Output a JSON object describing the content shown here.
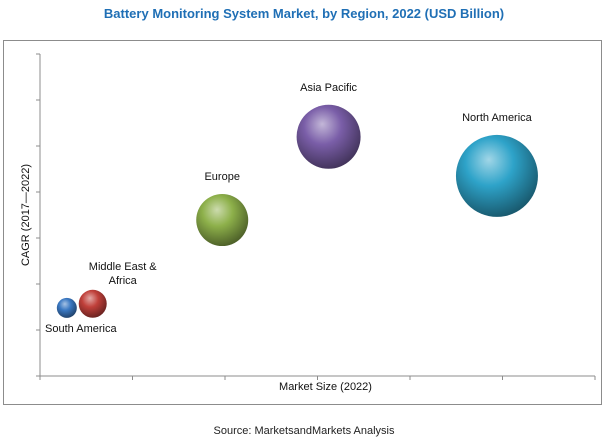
{
  "title": "Battery Monitoring System Market, by Region, 2022 (USD Billion)",
  "source": "Source: MarketsandMarkets Analysis",
  "chart_data": {
    "type": "bubble",
    "title": "Battery Monitoring System Market, by Region, 2022 (USD Billion)",
    "xlabel": "Market Size (2022)",
    "ylabel": "CAGR (2017—2022)",
    "xlim": [
      0,
      6
    ],
    "ylim": [
      0,
      7
    ],
    "x_ticks": 6,
    "y_ticks": 7,
    "tick_labels_shown": false,
    "grid": false,
    "legend": "none",
    "points": [
      {
        "name": "South America",
        "label_lines": [
          "South America"
        ],
        "x": 0.29,
        "y": 1.48,
        "size": 10,
        "color": "#3a78c2",
        "label_pos": "below"
      },
      {
        "name": "Middle East & Africa",
        "label_lines": [
          "Middle East &",
          "Africa"
        ],
        "x": 0.57,
        "y": 1.57,
        "size": 14,
        "color": "#c0403a",
        "label_pos": "above-right"
      },
      {
        "name": "Europe",
        "label_lines": [
          "Europe"
        ],
        "x": 1.97,
        "y": 3.39,
        "size": 26,
        "color": "#8db04a",
        "label_pos": "above"
      },
      {
        "name": "Asia Pacific",
        "label_lines": [
          "Asia Pacific"
        ],
        "x": 3.12,
        "y": 5.2,
        "size": 32,
        "color": "#7a5ea8",
        "label_pos": "above"
      },
      {
        "name": "North America",
        "label_lines": [
          "North America"
        ],
        "x": 4.94,
        "y": 4.35,
        "size": 41,
        "color": "#2ea3c9",
        "label_pos": "above"
      }
    ]
  }
}
